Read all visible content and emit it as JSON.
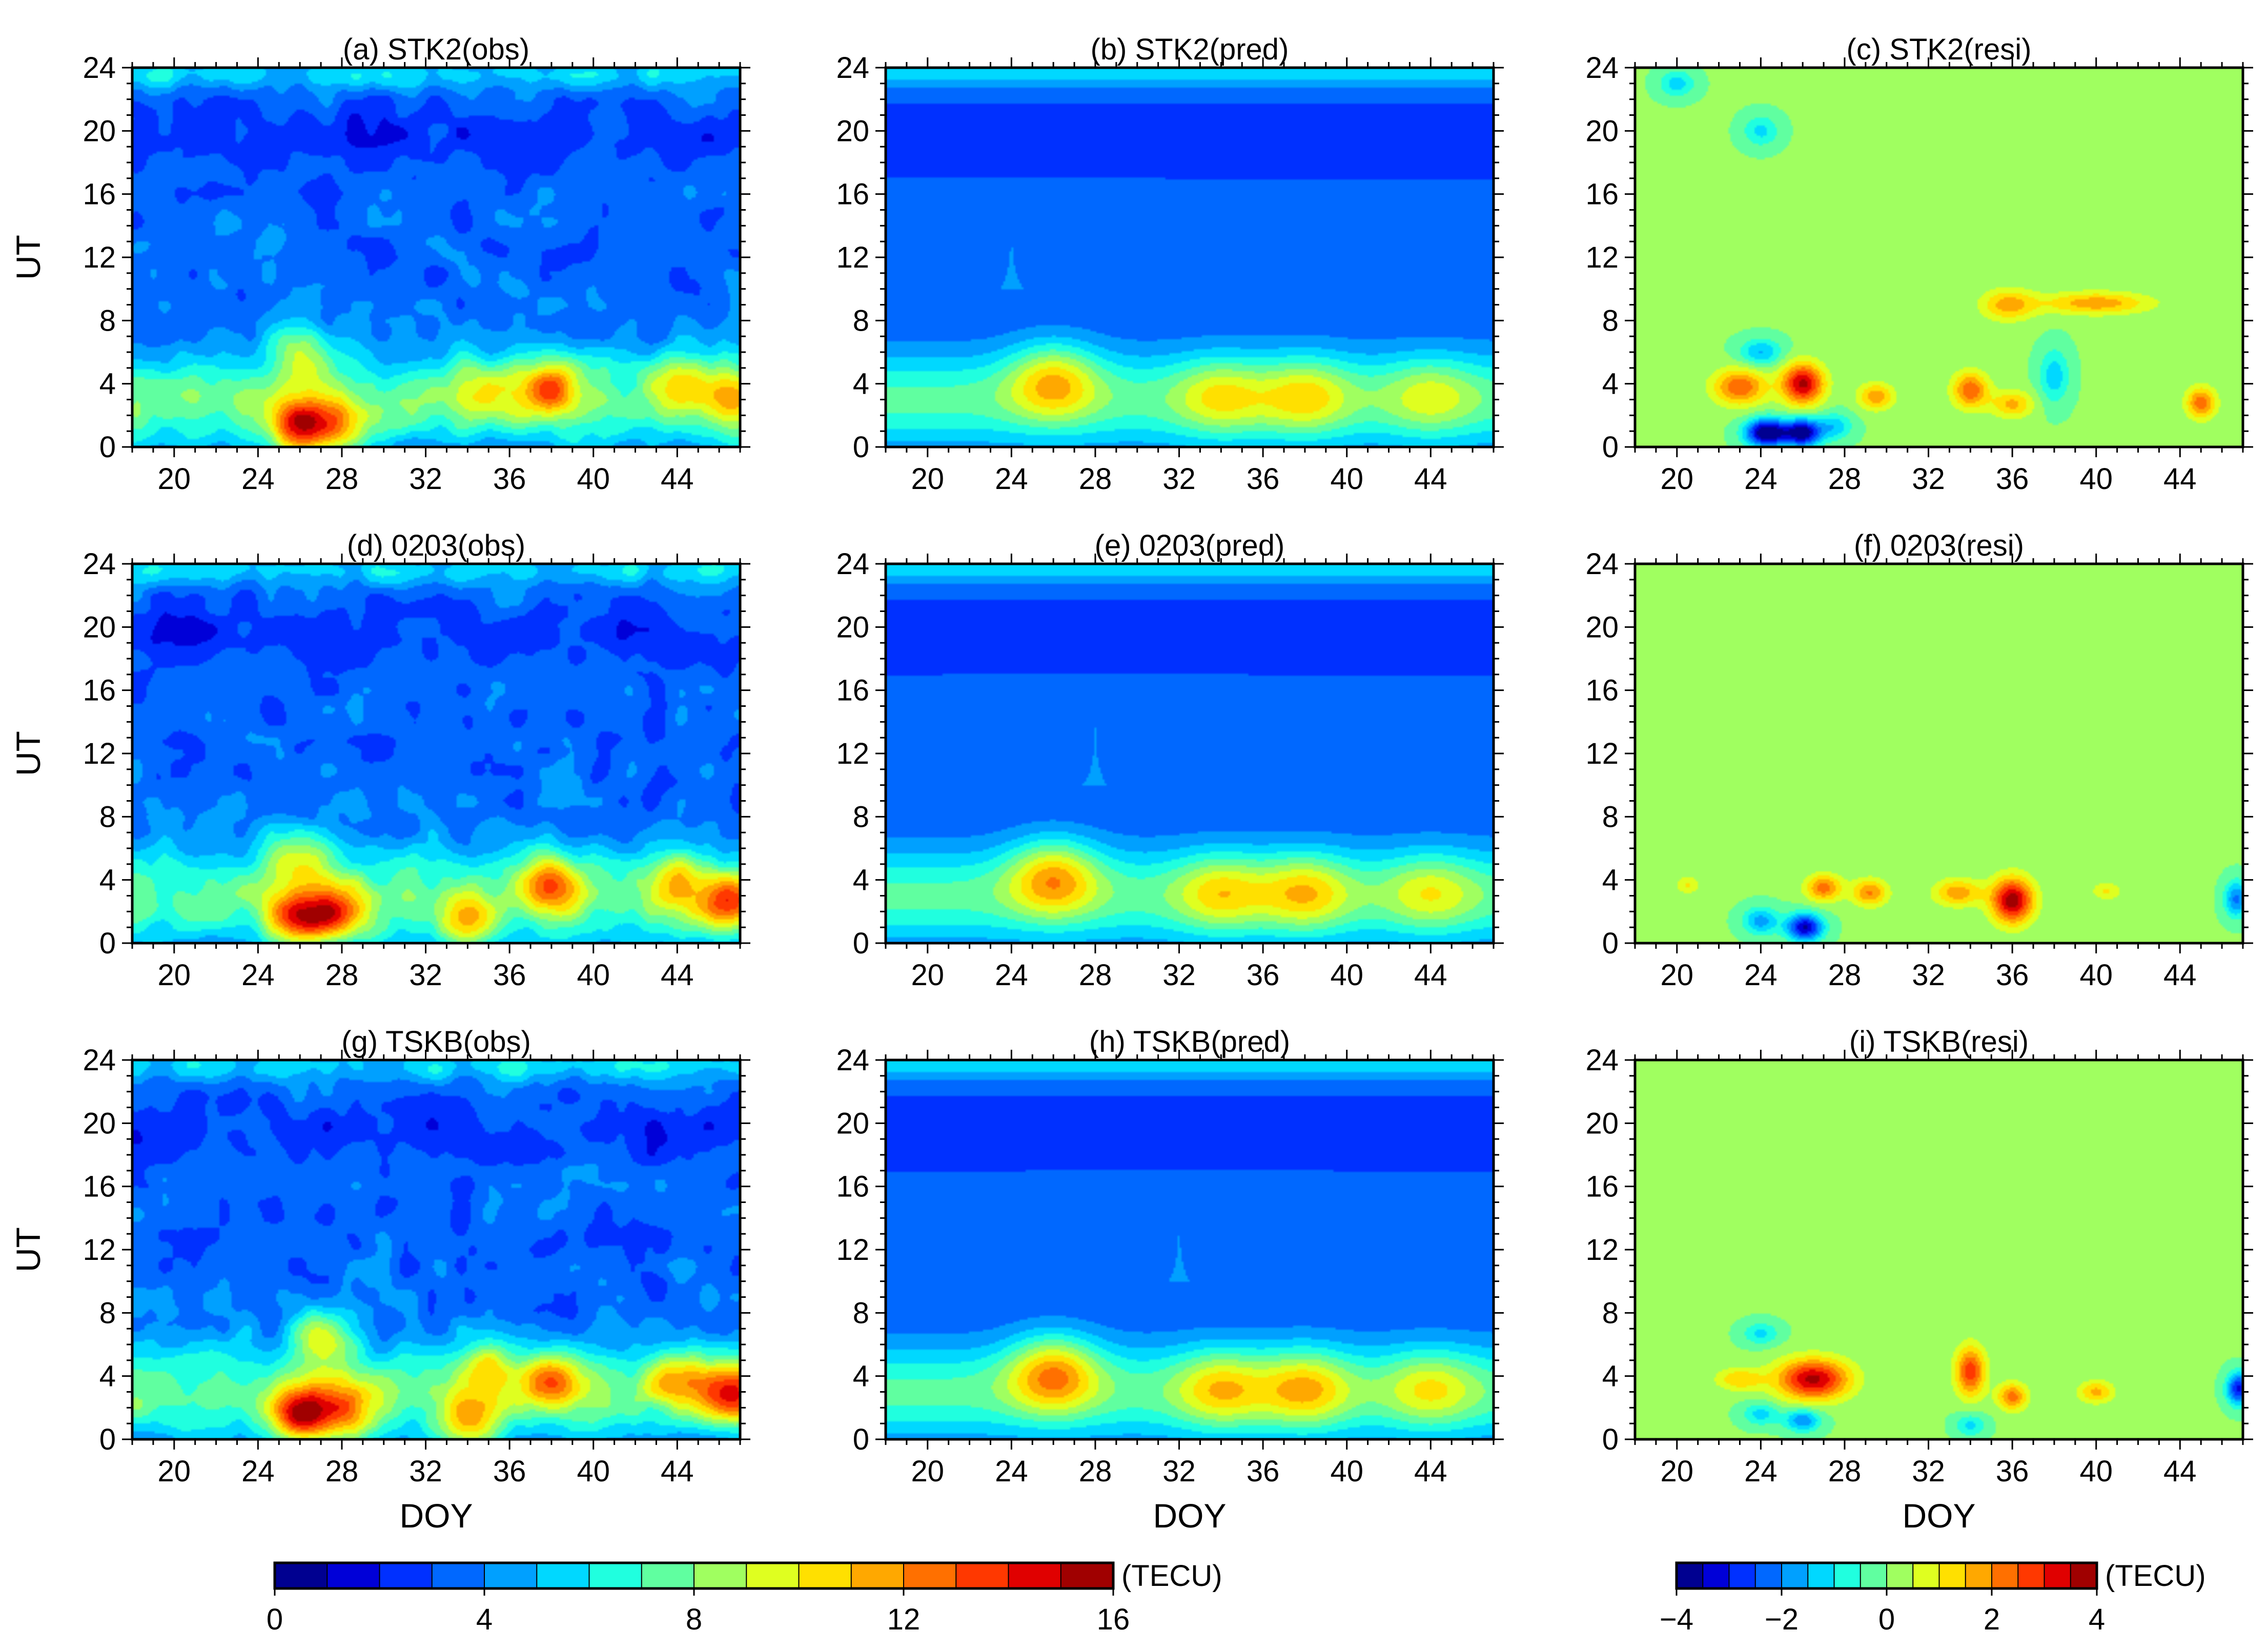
{
  "chart_data": {
    "type": "heatmap",
    "grid": "3x3 contour panels",
    "xlabel": "DOY",
    "ylabel": "UT",
    "xlim": [
      18,
      47
    ],
    "ylim": [
      0,
      24
    ],
    "xticks": [
      "20",
      "24",
      "28",
      "32",
      "36",
      "40",
      "44"
    ],
    "yticks": [
      "0",
      "4",
      "8",
      "12",
      "16",
      "20",
      "24"
    ],
    "panels": [
      {
        "title": "(a) STK2(obs)",
        "station": "STK2",
        "kind": "obs"
      },
      {
        "title": "(b) STK2(pred)",
        "station": "STK2",
        "kind": "pred"
      },
      {
        "title": "(c) STK2(resi)",
        "station": "STK2",
        "kind": "resi"
      },
      {
        "title": "(d) 0203(obs)",
        "station": "0203",
        "kind": "obs"
      },
      {
        "title": "(e) 0203(pred)",
        "station": "0203",
        "kind": "pred"
      },
      {
        "title": "(f) 0203(resi)",
        "station": "0203",
        "kind": "resi"
      },
      {
        "title": "(g) TSKB(obs)",
        "station": "TSKB",
        "kind": "obs"
      },
      {
        "title": "(h) TSKB(pred)",
        "station": "TSKB",
        "kind": "pred"
      },
      {
        "title": "(i) TSKB(resi)",
        "station": "TSKB",
        "kind": "resi"
      }
    ],
    "colorbar_tec": {
      "range": [
        0,
        16
      ],
      "levels": 16,
      "ticks": [
        "0",
        "4",
        "8",
        "12",
        "16"
      ],
      "unit": "(TECU)",
      "colors": [
        "#000090",
        "#0000d8",
        "#0030ff",
        "#0068ff",
        "#00a0ff",
        "#00d8ff",
        "#20ffdf",
        "#60ffa0",
        "#a0ff60",
        "#dfff20",
        "#ffe000",
        "#ffa800",
        "#ff7000",
        "#ff3800",
        "#e00000",
        "#a00000"
      ]
    },
    "colorbar_resi": {
      "range": [
        -4,
        4
      ],
      "levels": 16,
      "ticks": [
        "−4",
        "−2",
        "0",
        "2",
        "4"
      ],
      "unit": "(TECU)",
      "colors": [
        "#000090",
        "#0000d8",
        "#0030ff",
        "#0068ff",
        "#00a0ff",
        "#00d8ff",
        "#20ffdf",
        "#60ffa0",
        "#a0ff60",
        "#dfff20",
        "#ffe000",
        "#ffa800",
        "#ff7000",
        "#ff3800",
        "#e00000",
        "#a00000"
      ]
    },
    "features": {
      "obs_day_peak_UT": [
        0,
        6
      ],
      "obs_peak_DOY": [
        26,
        38,
        47
      ],
      "obs_peak_value": 15,
      "night_min_UT": [
        16,
        21
      ],
      "night_value": 2.5,
      "pred_peaks_DOY": [
        26,
        34,
        38,
        44
      ],
      "pred_peak_value": 12,
      "resi_background": 0,
      "resi_blobs": [
        {
          "panel": "c",
          "doy": 24,
          "ut": 1,
          "value": -3.5
        },
        {
          "panel": "c",
          "doy": 26,
          "ut": 4,
          "value": 3
        },
        {
          "panel": "c",
          "doy": 40,
          "ut": 9,
          "value": 1.5
        },
        {
          "panel": "c",
          "doy": 45,
          "ut": 3,
          "value": 2
        },
        {
          "panel": "f",
          "doy": 36,
          "ut": 3,
          "value": 3
        },
        {
          "panel": "f",
          "doy": 26,
          "ut": 1,
          "value": -2.5
        },
        {
          "panel": "i",
          "doy": 26,
          "ut": 4,
          "value": 3
        },
        {
          "panel": "i",
          "doy": 34,
          "ut": 4,
          "value": 2.5
        },
        {
          "panel": "i",
          "doy": 47,
          "ut": 3,
          "value": -2.5
        }
      ]
    }
  }
}
